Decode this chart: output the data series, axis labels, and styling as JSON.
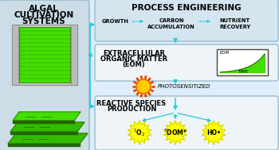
{
  "bg_color": "#ddeef8",
  "left_panel_color": "#ccdde8",
  "left_panel_border": "#99bbcc",
  "box_fill_top": "#d5e5f0",
  "box_fill_mid": "#eef4f8",
  "box_fill_bot": "#eef4f8",
  "box_border": "#99bbcc",
  "arrow_color": "#22ccdd",
  "title_top": "PROCESS ENGINEERING",
  "title_left_line1": "ALGAL",
  "title_left_line2": "CULTIVATION",
  "title_left_line3": "SYSTEMS",
  "eom_line1": "EXTRACELLULAR",
  "eom_line2": "ORGANIC MATTER",
  "eom_line3": "(EOM)",
  "reactive_line1": "REACTIVE SPECIES",
  "reactive_line2": "PRODUCTION",
  "growth_label": "GROWTH",
  "carbon_label": "CARBON\nACCUMULATION",
  "nutrient_label": "NUTRIENT\nRECOVERY",
  "photosensitized_label": "PHOTOSENSITIZED",
  "eom_graph_label": "EOM",
  "time_label": "TIME",
  "species1": "$^1$O$_2$",
  "species2": "$^3$DOM*",
  "species3": "HO•",
  "yellow": "#ffff00",
  "yellow_border": "#cccc00",
  "sun_orange": "#ee4400",
  "sun_yellow": "#ffcc00",
  "green_dark": "#226600",
  "green_bright": "#44dd00",
  "green_mid": "#33bb00",
  "gray_light": "#cccccc",
  "gray_dark": "#888888",
  "white": "#ffffff",
  "black": "#000000"
}
